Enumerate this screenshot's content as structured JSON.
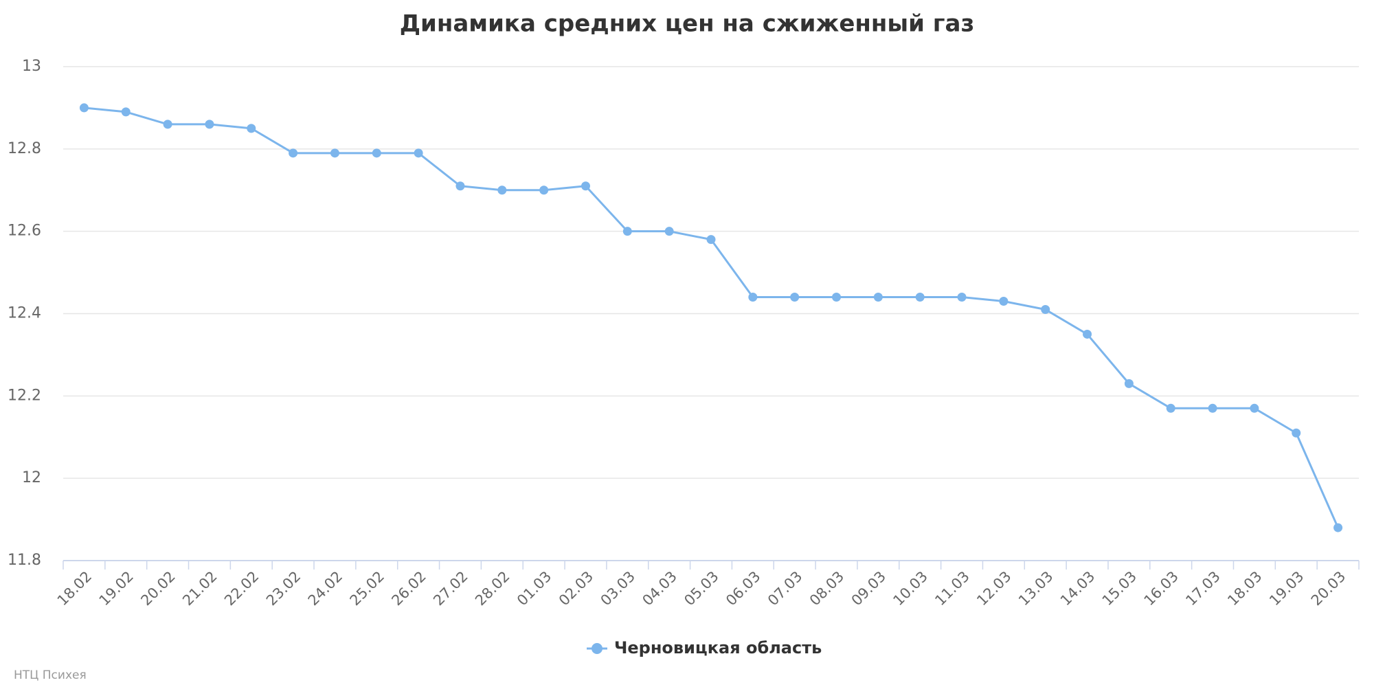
{
  "chart_data": {
    "type": "line",
    "title": "Динамика средних цен на сжиженный газ",
    "categories": [
      "18.02",
      "19.02",
      "20.02",
      "21.02",
      "22.02",
      "23.02",
      "24.02",
      "25.02",
      "26.02",
      "27.02",
      "28.02",
      "01.03",
      "02.03",
      "03.03",
      "04.03",
      "05.03",
      "06.03",
      "07.03",
      "08.03",
      "09.03",
      "10.03",
      "11.03",
      "12.03",
      "13.03",
      "14.03",
      "15.03",
      "16.03",
      "17.03",
      "18.03",
      "19.03",
      "20.03"
    ],
    "series": [
      {
        "name": "Черновицкая область",
        "color": "#7cb5ec",
        "values": [
          12.9,
          12.89,
          12.86,
          12.86,
          12.85,
          12.79,
          12.79,
          12.79,
          12.79,
          12.71,
          12.7,
          12.7,
          12.71,
          12.6,
          12.6,
          12.58,
          12.44,
          12.44,
          12.44,
          12.44,
          12.44,
          12.44,
          12.43,
          12.41,
          12.35,
          12.23,
          12.17,
          12.17,
          12.17,
          12.11,
          11.88
        ]
      }
    ],
    "ylim": [
      11.8,
      13
    ],
    "yticks": [
      11.8,
      12,
      12.2,
      12.4,
      12.6,
      12.8,
      13
    ],
    "grid": true,
    "credits": "НТЦ Психея"
  }
}
